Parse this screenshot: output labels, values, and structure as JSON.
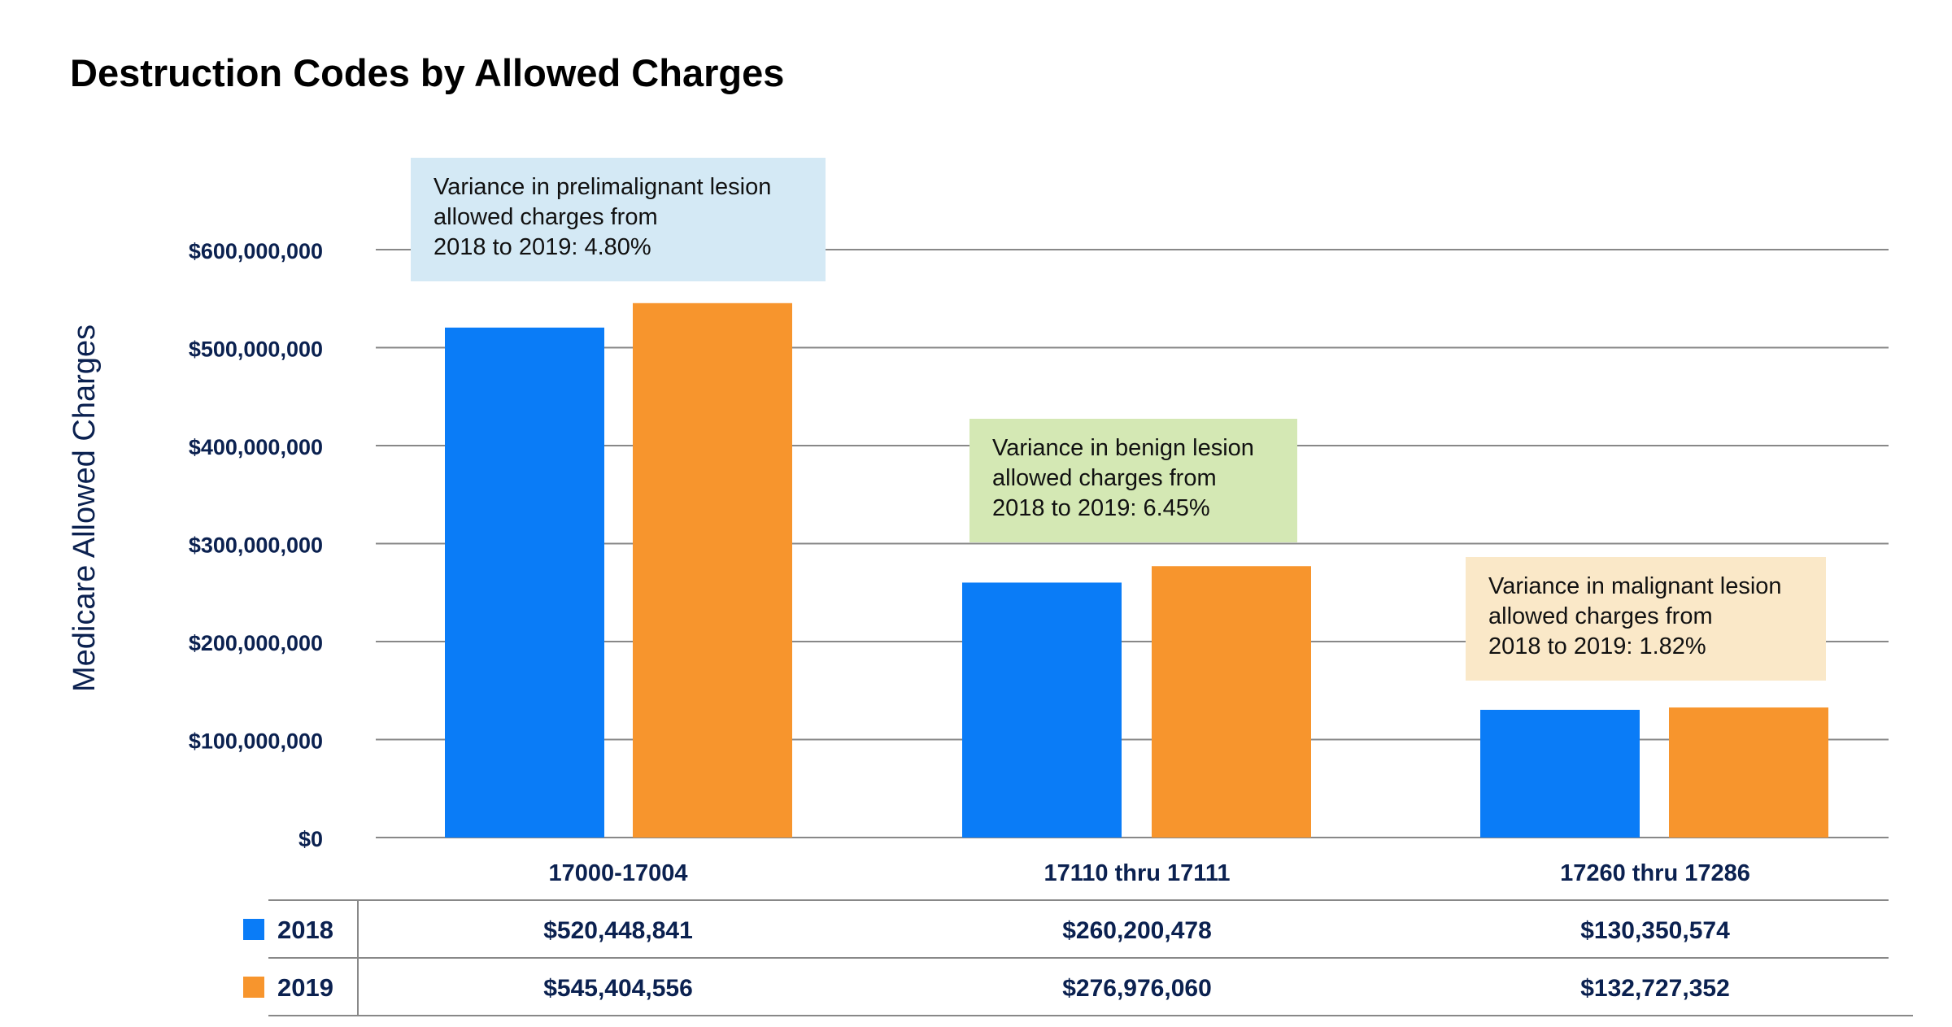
{
  "chart_data": {
    "type": "bar",
    "title": "Destruction Codes by Allowed Charges",
    "ylabel": "Medicare Allowed Charges",
    "xlabel": "",
    "ylim": [
      0,
      600000000
    ],
    "yticks": [
      {
        "value": 600000000,
        "label": "$600,000,000"
      },
      {
        "value": 500000000,
        "label": "$500,000,000"
      },
      {
        "value": 400000000,
        "label": "$400,000,000"
      },
      {
        "value": 300000000,
        "label": "$300,000,000"
      },
      {
        "value": 200000000,
        "label": "$200,000,000"
      },
      {
        "value": 100000000,
        "label": "$100,000,000"
      },
      {
        "value": 0,
        "label": "$0"
      }
    ],
    "categories": [
      "17000-17004",
      "17110 thru 17111",
      "17260 thru 17286"
    ],
    "series": [
      {
        "name": "2018",
        "color": "#0a7cf7",
        "values": [
          520448841,
          260200478,
          130350574
        ],
        "value_labels": [
          "$520,448,841",
          "$260,200,478",
          "$130,350,574"
        ]
      },
      {
        "name": "2019",
        "color": "#f7952d",
        "values": [
          545404556,
          276976060,
          132727352
        ],
        "value_labels": [
          "$545,404,556",
          "$276,976,060",
          "$132,727,352"
        ]
      }
    ],
    "grid": true,
    "legend": "data-table-left",
    "annotations": [
      {
        "lines": [
          "Variance in prelimalignant lesion",
          "allowed charges from",
          "2018 to 2019: 4.80%"
        ],
        "color": "#d4e9f5"
      },
      {
        "lines": [
          "Variance in benign lesion",
          "allowed charges from",
          "2018 to 2019: 6.45%"
        ],
        "color": "#d4e8b4"
      },
      {
        "lines": [
          "Variance in malignant lesion",
          "allowed charges from",
          "2018 to 2019: 1.82%"
        ],
        "color": "#fae8c8"
      }
    ]
  },
  "colors": {
    "axis_text": "#0b2150",
    "grid": "#888888"
  }
}
